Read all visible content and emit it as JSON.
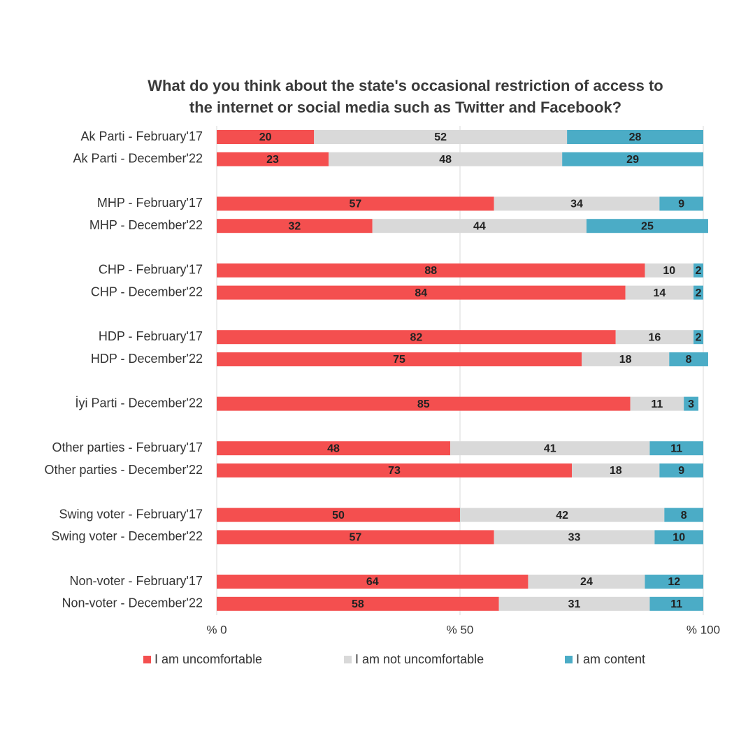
{
  "chart_data": {
    "type": "stacked-bar-horizontal",
    "title": [
      "What do you think about the state's occasional restriction of access to",
      "the internet or social media such as Twitter and Facebook?"
    ],
    "categories": [
      "Ak Parti - February'17",
      "Ak Parti - December'22",
      null,
      "MHP - February'17",
      "MHP - December'22",
      null,
      "CHP - February'17",
      "CHP - December'22",
      null,
      "HDP - February'17",
      "HDP - December'22",
      null,
      "İyi Parti - December'22",
      null,
      "Other parties - February'17",
      "Other parties - December'22",
      null,
      "Swing voter - February'17",
      "Swing voter - December'22",
      null,
      "Non-voter - February'17",
      "Non-voter - December'22"
    ],
    "series": [
      {
        "name": "I am uncomfortable",
        "color": "#f44f4f",
        "values": [
          20,
          23,
          null,
          57,
          32,
          null,
          88,
          84,
          null,
          82,
          75,
          null,
          85,
          null,
          48,
          73,
          null,
          50,
          57,
          null,
          64,
          58
        ]
      },
      {
        "name": "I am not uncomfortable",
        "color": "#d9d9d9",
        "values": [
          52,
          48,
          null,
          34,
          44,
          null,
          10,
          14,
          null,
          16,
          18,
          null,
          11,
          null,
          41,
          18,
          null,
          42,
          33,
          null,
          24,
          31
        ]
      },
      {
        "name": "I am content",
        "color": "#4bacc6",
        "values": [
          28,
          29,
          null,
          9,
          25,
          null,
          2,
          2,
          null,
          2,
          8,
          null,
          3,
          null,
          11,
          9,
          null,
          8,
          10,
          null,
          12,
          11
        ]
      }
    ],
    "xlim": [
      0,
      100
    ],
    "xticks": [
      {
        "value": 0,
        "label": "% 0"
      },
      {
        "value": 50,
        "label": "% 50"
      },
      {
        "value": 100,
        "label": "% 100"
      }
    ],
    "grid": true,
    "legend": "bottom"
  }
}
